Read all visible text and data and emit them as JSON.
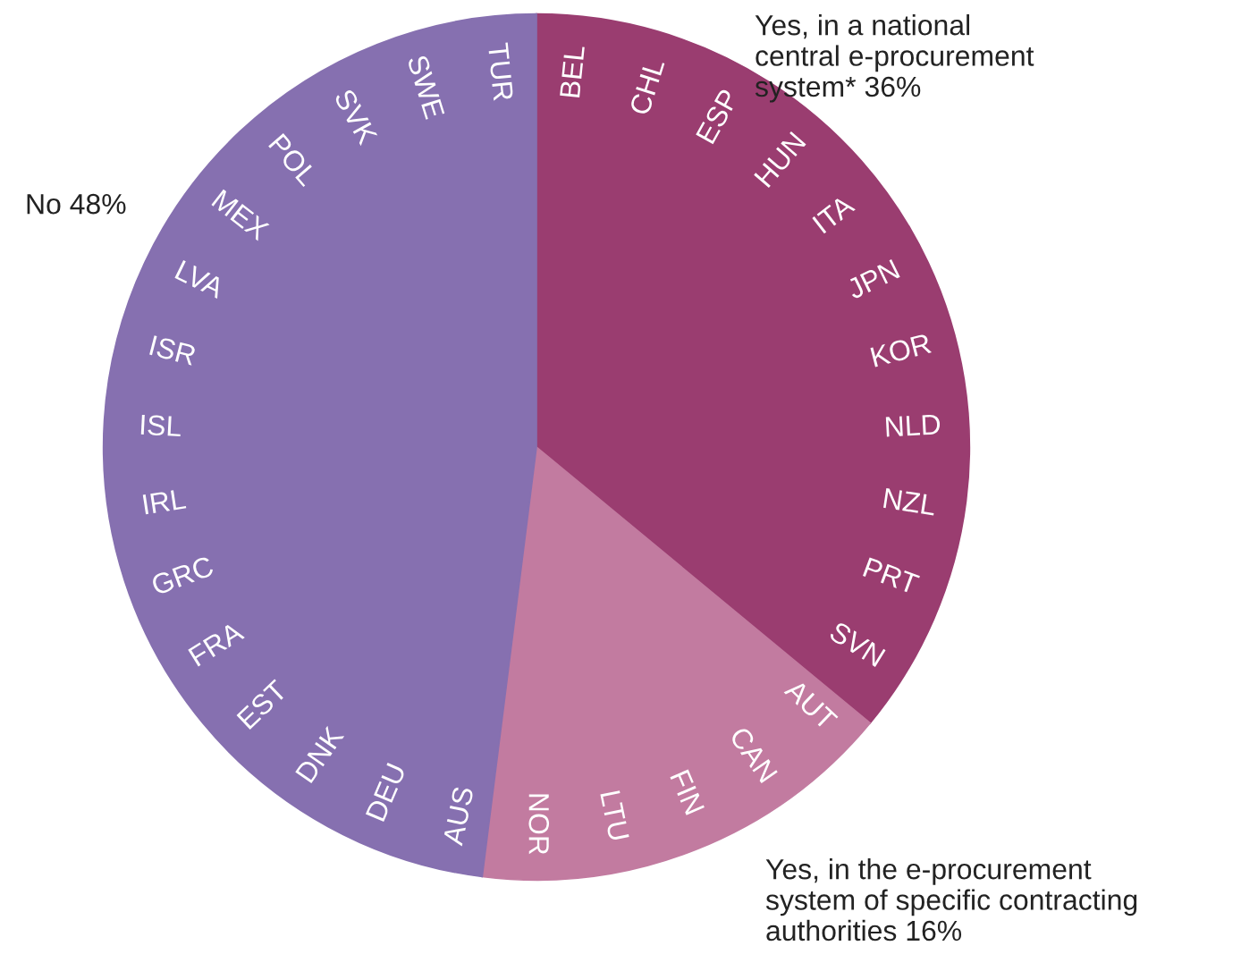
{
  "chart_data": {
    "type": "pie",
    "categories": [
      "Yes, in a national\ncentral e-procurement\nsystem*",
      "Yes, in the e-procurement\nsystem of specific contracting\nauthorities",
      "No"
    ],
    "values": [
      36,
      16,
      48
    ],
    "value_labels": [
      "36%",
      "16%",
      "48%"
    ],
    "colors": [
      "#9a3d70",
      "#c27ba0",
      "#8670b0"
    ],
    "annotations": [
      "BEL",
      "CHL",
      "ESP",
      "HUN",
      "ITA",
      "JPN",
      "KOR",
      "NLD",
      "NZL",
      "PRT",
      "SVN",
      "AUT",
      "CAN",
      "FIN",
      "LTU",
      "NOR",
      "AUS",
      "DEU",
      "DNK",
      "EST",
      "FRA",
      "GRC",
      "IRL",
      "ISL",
      "ISR",
      "LVA",
      "MEX",
      "POL",
      "SVK",
      "SWE",
      "TUR"
    ]
  }
}
